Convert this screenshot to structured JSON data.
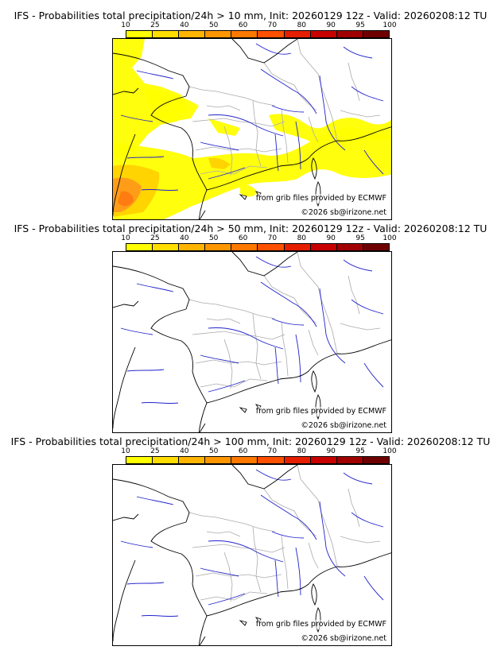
{
  "panels": [
    {
      "title": "IFS - Probabilities total precipitation/24h > 10 mm, Init: 20260129 12z - Valid: 20260208:12 TU",
      "precip_level": "heavy",
      "credit_source": "from grib files provided by ECMWF",
      "credit_copyright": "©2026 sb@irizone.net"
    },
    {
      "title": "IFS - Probabilities total precipitation/24h > 50 mm, Init: 20260129 12z - Valid: 20260208:12 TU",
      "precip_level": "none",
      "credit_source": "from grib files provided by ECMWF",
      "credit_copyright": "©2026 sb@irizone.net"
    },
    {
      "title": "IFS - Probabilities total precipitation/24h > 100 mm, Init: 20260129 12z - Valid: 20260208:12 TU",
      "precip_level": "none",
      "credit_source": "from grib files provided by ECMWF",
      "credit_copyright": "©2026 sb@irizone.net"
    }
  ],
  "scale": {
    "ticks": [
      "10",
      "25",
      "40",
      "50",
      "60",
      "70",
      "80",
      "90",
      "95",
      "100"
    ],
    "colors": [
      "#ffff00",
      "#ffdd00",
      "#ffb400",
      "#ff9600",
      "#ff7800",
      "#ff5000",
      "#e61e00",
      "#c80000",
      "#a00000",
      "#6e0000"
    ]
  },
  "map_colors": {
    "coast": "#000000",
    "rivers": "#2222cc",
    "borders": "#aaaaaa",
    "prob_low": "#ffff00",
    "prob_mid": "#ffd200",
    "prob_high": "#ff9a1a",
    "prob_max": "#ff7a10"
  }
}
